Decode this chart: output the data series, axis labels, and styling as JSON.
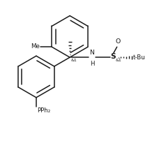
{
  "background_color": "#ffffff",
  "line_color": "#1a1a1a",
  "line_width": 1.1,
  "font_size": 6.2,
  "fig_width": 2.38,
  "fig_height": 2.15,
  "dpi": 100,
  "xlim": [
    0,
    238
  ],
  "ylim": [
    0,
    215
  ]
}
